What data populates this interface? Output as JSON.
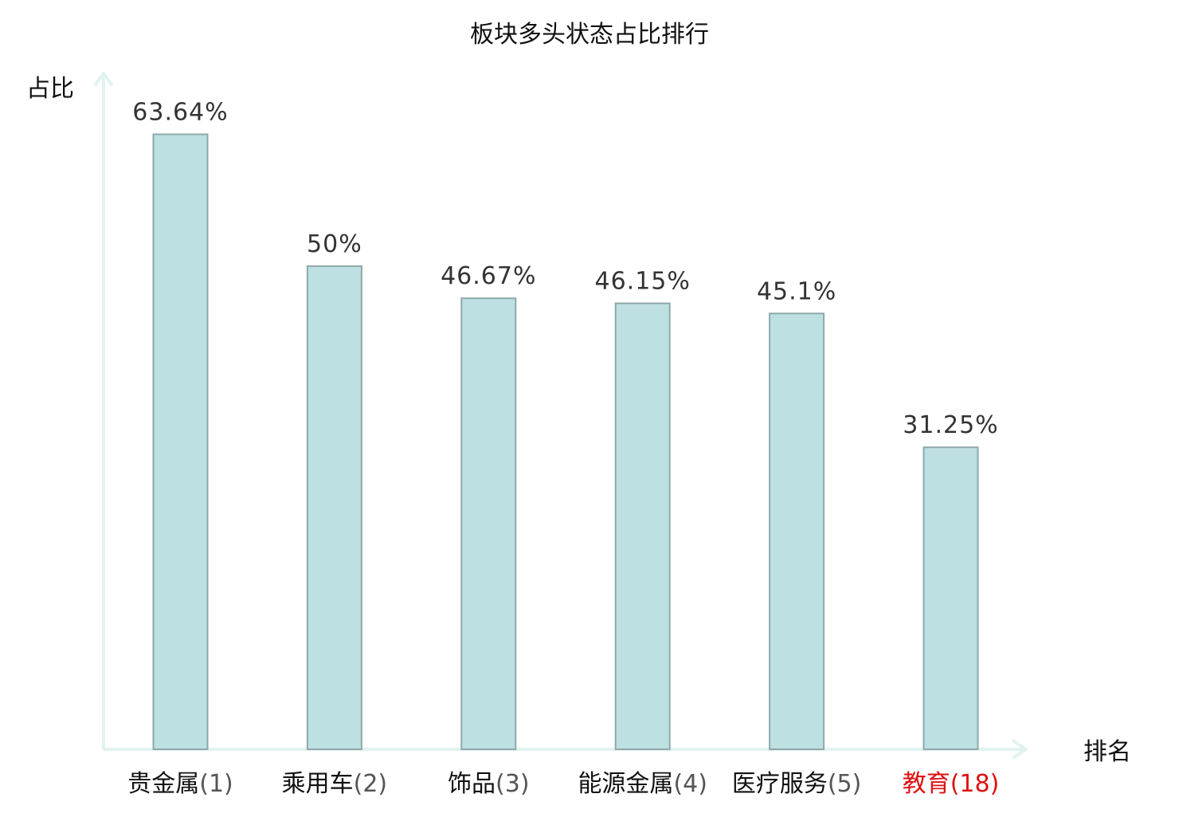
{
  "chart_data": {
    "type": "bar",
    "title": "板块多头状态占比排行",
    "ylabel": "占比",
    "xlabel": "排名",
    "ylim": [
      0,
      70
    ],
    "grid": false,
    "categories": [
      {
        "name": "贵金属",
        "rank": "(1)",
        "highlight": false
      },
      {
        "name": "乘用车",
        "rank": "(2)",
        "highlight": false
      },
      {
        "name": "饰品",
        "rank": "(3)",
        "highlight": false
      },
      {
        "name": "能源金属",
        "rank": "(4)",
        "highlight": false
      },
      {
        "name": "医疗服务",
        "rank": "(5)",
        "highlight": false
      },
      {
        "name": "教育",
        "rank": "(18)",
        "highlight": true
      }
    ],
    "values": [
      63.64,
      50,
      46.67,
      46.15,
      45.1,
      31.25
    ],
    "value_labels": [
      "63.64%",
      "50%",
      "46.67%",
      "46.15%",
      "45.1%",
      "31.25%"
    ]
  },
  "colors": {
    "bar_fill": "#bde0e2",
    "bar_stroke": "#8fa9aa",
    "axis": "#e2f2f0",
    "highlight_text": "#dd1111"
  }
}
